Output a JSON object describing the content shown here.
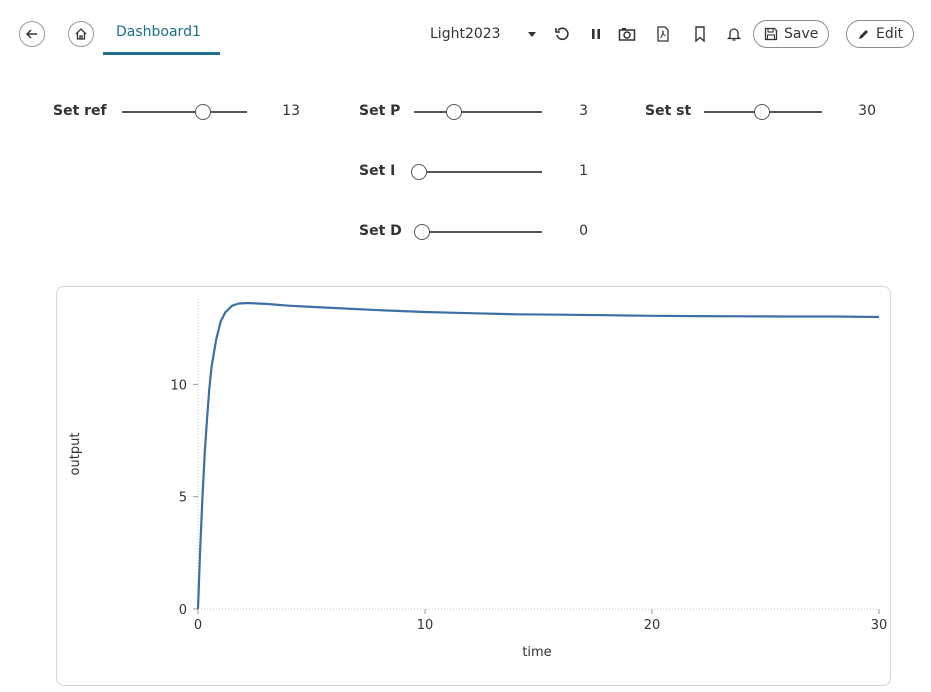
{
  "toolbar": {
    "back_icon": "arrow-left-icon",
    "home_icon": "home-icon",
    "tab_title": "Dashboard1",
    "theme": "Light2023",
    "icons": [
      "chevron-down-icon",
      "refresh-icon",
      "pause-icon",
      "camera-icon",
      "pdf-icon",
      "bookmark-icon",
      "bell-icon"
    ],
    "save_label": "Save",
    "edit_label": "Edit",
    "accent_color": "#1f6e8c"
  },
  "sliders": {
    "ref": {
      "label": "Set ref",
      "value": "13"
    },
    "p": {
      "label": "Set P",
      "value": "3"
    },
    "st": {
      "label": "Set st",
      "value": "30"
    },
    "i": {
      "label": "Set I",
      "value": "1"
    },
    "d": {
      "label": "Set D",
      "value": "0"
    }
  },
  "chart_data": {
    "type": "line",
    "xlabel": "time",
    "ylabel": "output",
    "xlim": [
      0,
      30
    ],
    "ylim": [
      0,
      13.8
    ],
    "xticks": [
      0,
      10,
      20,
      30
    ],
    "yticks": [
      0,
      5,
      10
    ],
    "line_color": "#3d6fa5",
    "series": [
      {
        "x": [
          0,
          0.1,
          0.2,
          0.3,
          0.4,
          0.5,
          0.6,
          0.8,
          1.0,
          1.2,
          1.5,
          1.8,
          2.2,
          2.6,
          3.0,
          4,
          5,
          6,
          8,
          10,
          12,
          14,
          16,
          18,
          20,
          22,
          24,
          26,
          28,
          30
        ],
        "y": [
          0,
          2.8,
          5.0,
          7.0,
          8.5,
          9.8,
          10.8,
          12.0,
          12.8,
          13.2,
          13.5,
          13.6,
          13.62,
          13.6,
          13.58,
          13.5,
          13.45,
          13.4,
          13.3,
          13.22,
          13.17,
          13.12,
          13.1,
          13.08,
          13.05,
          13.04,
          13.03,
          13.02,
          13.02,
          13.0
        ]
      }
    ]
  }
}
